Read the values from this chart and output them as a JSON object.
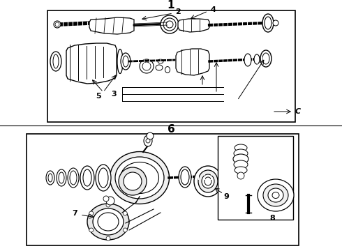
{
  "bg_color": "#ffffff",
  "fig_width": 4.9,
  "fig_height": 3.6,
  "dpi": 100,
  "top_label": "1",
  "bottom_label": "6",
  "line_color": "#000000",
  "gray_bg": "#e8e8e8"
}
